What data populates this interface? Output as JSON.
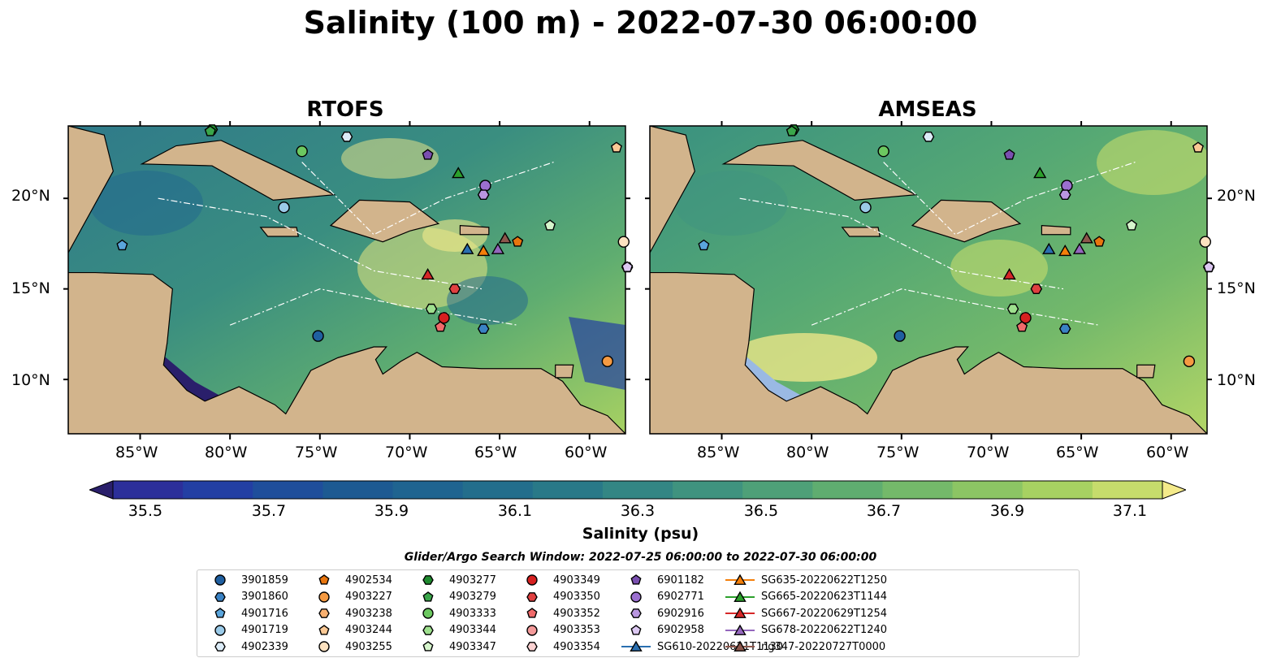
{
  "title": "Salinity (100 m) - 2022-07-30 06:00:00",
  "panels": [
    {
      "title": "RTOFS",
      "model": "RTOFS"
    },
    {
      "title": "AMSEAS",
      "model": "AMSEAS"
    }
  ],
  "map": {
    "lon_range": [
      -89,
      -58
    ],
    "lat_range": [
      7,
      24
    ],
    "lon_ticks": [
      "85°W",
      "80°W",
      "75°W",
      "70°W",
      "65°W",
      "60°W"
    ],
    "lat_ticks": [
      "20°N",
      "15°N",
      "10°N"
    ],
    "contour_labels": [
      "-1000",
      "-100"
    ],
    "colors": {
      "land": "#d2b48c",
      "shelf": "#9ab9e3",
      "coast": "#000000",
      "boundary": "#ffffff"
    }
  },
  "colorbar": {
    "label": "Salinity (psu)",
    "min": 35.5,
    "max": 37.1,
    "tick_labels": [
      "35.5",
      "35.7",
      "35.9",
      "36.1",
      "36.3",
      "36.5",
      "36.7",
      "36.9",
      "37.1"
    ],
    "extend": "both",
    "colors": [
      "#2a1f6b",
      "#2c2f9a",
      "#233fa3",
      "#1f4e9b",
      "#1d5a92",
      "#1f6490",
      "#236e8c",
      "#297988",
      "#338684",
      "#3f937f",
      "#4ea078",
      "#5fad70",
      "#74b96a",
      "#8cc564",
      "#a7d162",
      "#c6dc6c",
      "#f4ea8a"
    ]
  },
  "search_window": "Glider/Argo Search Window: 2022-07-25 06:00:00 to 2022-07-30 06:00:00",
  "legend": [
    {
      "label": "3901859",
      "marker": "circle",
      "color": "#1f5fa0"
    },
    {
      "label": "3901860",
      "marker": "hexagon",
      "color": "#3a82c4"
    },
    {
      "label": "4901716",
      "marker": "pentagon",
      "color": "#5aa5dc"
    },
    {
      "label": "4901719",
      "marker": "circle",
      "color": "#9acae8"
    },
    {
      "label": "4902339",
      "marker": "hexagon",
      "color": "#dcecf8"
    },
    {
      "label": "4902534",
      "marker": "pentagon",
      "color": "#e8750e"
    },
    {
      "label": "4903227",
      "marker": "circle",
      "color": "#f59a42"
    },
    {
      "label": "4903238",
      "marker": "hexagon",
      "color": "#f8b070"
    },
    {
      "label": "4903244",
      "marker": "pentagon",
      "color": "#fbc995"
    },
    {
      "label": "4903255",
      "marker": "circle",
      "color": "#fde2c0"
    },
    {
      "label": "4903277",
      "marker": "hexagon",
      "color": "#1e8a2e"
    },
    {
      "label": "4903279",
      "marker": "pentagon",
      "color": "#3aa64a"
    },
    {
      "label": "4903333",
      "marker": "circle",
      "color": "#6cc860"
    },
    {
      "label": "4903344",
      "marker": "hexagon",
      "color": "#9ee08e"
    },
    {
      "label": "4903347",
      "marker": "pentagon",
      "color": "#d6f5cc"
    },
    {
      "label": "4903349",
      "marker": "circle",
      "color": "#d62020"
    },
    {
      "label": "4903350",
      "marker": "hexagon",
      "color": "#e04040"
    },
    {
      "label": "4903352",
      "marker": "pentagon",
      "color": "#f06a6a"
    },
    {
      "label": "4903353",
      "marker": "circle",
      "color": "#f49a9a"
    },
    {
      "label": "4903354",
      "marker": "hexagon",
      "color": "#fbd2d2"
    },
    {
      "label": "6901182",
      "marker": "pentagon",
      "color": "#7a4fb0"
    },
    {
      "label": "6902771",
      "marker": "circle",
      "color": "#9b6fd0"
    },
    {
      "label": "6902916",
      "marker": "hexagon",
      "color": "#b996e0"
    },
    {
      "label": "6902958",
      "marker": "pentagon",
      "color": "#dcc8f2"
    },
    {
      "label": "SG610-20220621T1130",
      "marker": "triangle",
      "color": "#2a6fb0"
    },
    {
      "label": "SG635-20220622T1250",
      "marker": "triangle",
      "color": "#f47f0a"
    },
    {
      "label": "SG665-20220623T1144",
      "marker": "triangle",
      "color": "#2ca02c"
    },
    {
      "label": "SG667-20220629T1254",
      "marker": "triangle",
      "color": "#d62728"
    },
    {
      "label": "SG678-20220622T1240",
      "marker": "triangle",
      "color": "#9467bd"
    },
    {
      "label": "ng347-20220727T0000",
      "marker": "triangle",
      "color": "#8c564b"
    }
  ],
  "observations": [
    {
      "label": "3901859",
      "lon": -75.1,
      "lat": 12.4
    },
    {
      "label": "3901860",
      "lon": -65.9,
      "lat": 12.8
    },
    {
      "label": "4901716",
      "lon": -86.0,
      "lat": 17.4
    },
    {
      "label": "4901719",
      "lon": -77.0,
      "lat": 19.5
    },
    {
      "label": "4902339",
      "lon": -73.5,
      "lat": 23.4
    },
    {
      "label": "4902534",
      "lon": -64.0,
      "lat": 17.6
    },
    {
      "label": "4903227",
      "lon": -59.0,
      "lat": 11.0
    },
    {
      "label": "4903238",
      "lon": -57.9,
      "lat": 16.2
    },
    {
      "label": "4903244",
      "lon": -58.5,
      "lat": 22.8
    },
    {
      "label": "4903255",
      "lon": -58.1,
      "lat": 17.6
    },
    {
      "label": "4903277",
      "lon": -81.0,
      "lat": 23.8
    },
    {
      "label": "4903279",
      "lon": -81.1,
      "lat": 23.7
    },
    {
      "label": "4903333",
      "lon": -76.0,
      "lat": 22.6
    },
    {
      "label": "4903344",
      "lon": -68.8,
      "lat": 13.9
    },
    {
      "label": "4903347",
      "lon": -62.2,
      "lat": 18.5
    },
    {
      "label": "4903349",
      "lon": -68.1,
      "lat": 13.4
    },
    {
      "label": "4903350",
      "lon": -67.5,
      "lat": 15.0
    },
    {
      "label": "4903352",
      "lon": -68.3,
      "lat": 12.9
    },
    {
      "label": "4903353",
      "lon": -65.8,
      "lat": 20.7
    },
    {
      "label": "4903354",
      "lon": -65.9,
      "lat": 20.2
    },
    {
      "label": "6901182",
      "lon": -69.0,
      "lat": 22.4
    },
    {
      "label": "6902771",
      "lon": -65.8,
      "lat": 20.7
    },
    {
      "label": "6902916",
      "lon": -65.9,
      "lat": 20.2
    },
    {
      "label": "6902958",
      "lon": -57.9,
      "lat": 16.2
    },
    {
      "label": "SG610-20220621T1130",
      "lon": -66.8,
      "lat": 17.2
    },
    {
      "label": "SG635-20220622T1250",
      "lon": -65.9,
      "lat": 17.1
    },
    {
      "label": "SG665-20220623T1144",
      "lon": -67.3,
      "lat": 21.4
    },
    {
      "label": "SG667-20220629T1254",
      "lon": -69.0,
      "lat": 15.8
    },
    {
      "label": "SG678-20220622T1240",
      "lon": -65.1,
      "lat": 17.2
    },
    {
      "label": "ng347-20220727T0000",
      "lon": -64.7,
      "lat": 17.8
    }
  ]
}
